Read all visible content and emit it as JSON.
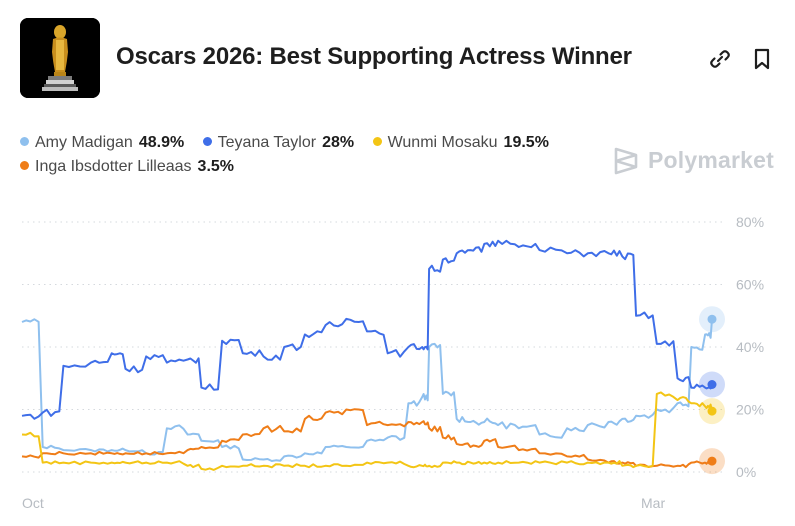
{
  "header": {
    "title": "Oscars 2026: Best Supporting Actress Winner"
  },
  "brand": {
    "name": "Polymarket"
  },
  "legend": [
    {
      "name": "Amy Madigan",
      "value": "48.9%"
    },
    {
      "name": "Teyana Taylor",
      "value": "28%"
    },
    {
      "name": "Wunmi Mosaku",
      "value": "19.5%"
    },
    {
      "name": "Inga Ibsdotter Lilleaas",
      "value": "3.5%"
    }
  ],
  "colors": {
    "amy": "#8fc0ee",
    "teyana": "#3f6ee8",
    "wunmi": "#f3c515",
    "inga": "#ef7d18",
    "grid": "#d5d9de",
    "axis_text": "#b7bcc2"
  },
  "chart_data": {
    "type": "line",
    "x_ticks": [
      "Oct",
      "Mar"
    ],
    "y_ticks": [
      "0%",
      "20%",
      "40%",
      "60%",
      "80%"
    ],
    "ylim": [
      0,
      80
    ],
    "grid": true,
    "legend_position": "top-left",
    "x": [
      0,
      3,
      6,
      10,
      13,
      15,
      18,
      21,
      24,
      26,
      29,
      32,
      35,
      38,
      41,
      44,
      47,
      50,
      53,
      56,
      58,
      59,
      61,
      63,
      65,
      67,
      69,
      72,
      75,
      79,
      82,
      85,
      87,
      89,
      92,
      95,
      97,
      99,
      100
    ],
    "series": [
      {
        "name": "Amy Madigan",
        "values": [
          48,
          8,
          7,
          7,
          7,
          7,
          6,
          14,
          12,
          10,
          8,
          4,
          4,
          5,
          6,
          8,
          8,
          10,
          11,
          22,
          24,
          40,
          25,
          17,
          16,
          16,
          15,
          14,
          12,
          14,
          15,
          16,
          17,
          18,
          20,
          22,
          40,
          44,
          48.9
        ]
      },
      {
        "name": "Teyana Taylor",
        "values": [
          18,
          19,
          34,
          35,
          38,
          33,
          37,
          35,
          36,
          27,
          42,
          38,
          37,
          40,
          44,
          47,
          49,
          45,
          38,
          40,
          40,
          65,
          68,
          70,
          71,
          73,
          74,
          72,
          71,
          70,
          70,
          70,
          69,
          50,
          41,
          30,
          27,
          27,
          28
        ]
      },
      {
        "name": "Wunmi Mosaku",
        "values": [
          12,
          3,
          3,
          3,
          3,
          3,
          3,
          3,
          2,
          1,
          2,
          2,
          2,
          2,
          2,
          2,
          2,
          3,
          3,
          2,
          2,
          2,
          3,
          3,
          3,
          3,
          3,
          3,
          3,
          3,
          3,
          3,
          2,
          2,
          25,
          23,
          22,
          21,
          19.5
        ]
      },
      {
        "name": "Inga Ibsdotter Lilleaas",
        "values": [
          5,
          6,
          6,
          6,
          6,
          6,
          6,
          6,
          7,
          8,
          10,
          12,
          14,
          13,
          17,
          19,
          20,
          15,
          15,
          16,
          16,
          14,
          11,
          9,
          8,
          10,
          8,
          7,
          6,
          5,
          4,
          3,
          3,
          2,
          2,
          2,
          3,
          3,
          3.5
        ]
      }
    ]
  }
}
